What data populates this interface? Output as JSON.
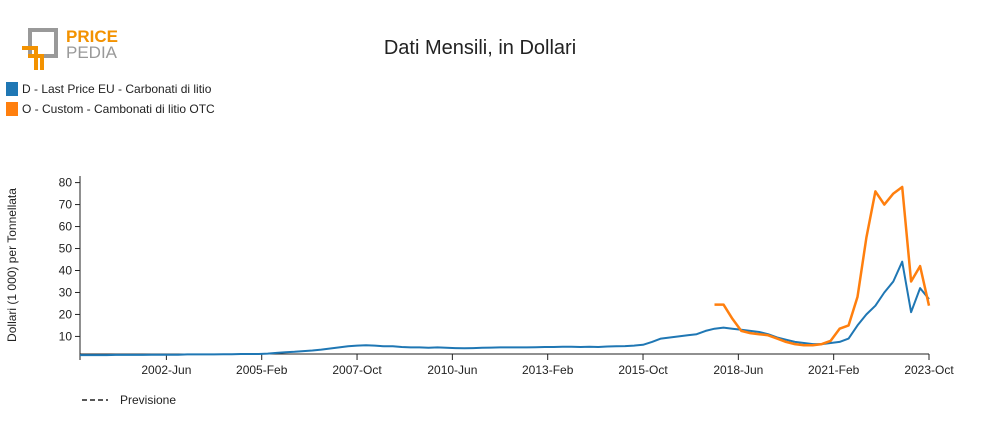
{
  "logo": {
    "line1": "PRICE",
    "line2": "PEDIA"
  },
  "chart_data": {
    "type": "line",
    "title": "Dati Mensili, in Dollari",
    "y_label": "Dollari (1 000) per Tonnellata",
    "forecast_label": "Previsione",
    "x": [
      "2000-01",
      "2000-04",
      "2000-07",
      "2000-10",
      "2001-01",
      "2001-04",
      "2001-07",
      "2001-10",
      "2002-01",
      "2002-04",
      "2002-07",
      "2002-10",
      "2003-01",
      "2003-04",
      "2003-07",
      "2003-10",
      "2004-01",
      "2004-04",
      "2004-07",
      "2004-10",
      "2005-01",
      "2005-04",
      "2005-07",
      "2005-10",
      "2006-01",
      "2006-04",
      "2006-07",
      "2006-10",
      "2007-01",
      "2007-04",
      "2007-07",
      "2007-10",
      "2008-01",
      "2008-04",
      "2008-07",
      "2008-10",
      "2009-01",
      "2009-04",
      "2009-07",
      "2009-10",
      "2010-01",
      "2010-04",
      "2010-07",
      "2010-10",
      "2011-01",
      "2011-04",
      "2011-07",
      "2011-10",
      "2012-01",
      "2012-04",
      "2012-07",
      "2012-10",
      "2013-01",
      "2013-04",
      "2013-07",
      "2013-10",
      "2014-01",
      "2014-04",
      "2014-07",
      "2014-10",
      "2015-01",
      "2015-04",
      "2015-07",
      "2015-10",
      "2016-01",
      "2016-04",
      "2016-07",
      "2016-10",
      "2017-01",
      "2017-04",
      "2017-07",
      "2017-10",
      "2018-01",
      "2018-04",
      "2018-07",
      "2018-10",
      "2019-01",
      "2019-04",
      "2019-07",
      "2019-10",
      "2020-01",
      "2020-04",
      "2020-07",
      "2020-10",
      "2021-01",
      "2021-04",
      "2021-07",
      "2021-10",
      "2022-01",
      "2022-04",
      "2022-07",
      "2022-10",
      "2023-01",
      "2023-04",
      "2023-07",
      "2023-10"
    ],
    "series": [
      {
        "name": "D - Last Price EU - Carbonati di litio",
        "color": "#1f77b4",
        "values": [
          1.5,
          1.5,
          1.5,
          1.5,
          1.6,
          1.6,
          1.6,
          1.6,
          1.7,
          1.7,
          1.7,
          1.7,
          1.8,
          1.8,
          1.8,
          1.8,
          1.9,
          1.9,
          2,
          2,
          2,
          2.2,
          2.5,
          2.8,
          3,
          3.3,
          3.6,
          4,
          4.5,
          5,
          5.5,
          5.8,
          6,
          5.8,
          5.5,
          5.5,
          5.2,
          5,
          5,
          4.8,
          5,
          4.8,
          4.7,
          4.6,
          4.7,
          4.8,
          4.9,
          5,
          5,
          5,
          5,
          5.1,
          5.2,
          5.2,
          5.3,
          5.3,
          5.2,
          5.3,
          5.2,
          5.4,
          5.5,
          5.6,
          5.8,
          6.2,
          7.5,
          9,
          9.5,
          10,
          10.5,
          11,
          12.5,
          13.5,
          14,
          13.5,
          13,
          12.5,
          12,
          11,
          9.5,
          8.5,
          7.5,
          7,
          6.5,
          6.5,
          7,
          7.5,
          9,
          15,
          20,
          24,
          30,
          35,
          44,
          21,
          32,
          27
        ]
      },
      {
        "name": "O - Custom - Cambonati di litio OTC",
        "color": "#ff7f0e",
        "values": [
          null,
          null,
          null,
          null,
          null,
          null,
          null,
          null,
          null,
          null,
          null,
          null,
          null,
          null,
          null,
          null,
          null,
          null,
          null,
          null,
          null,
          null,
          null,
          null,
          null,
          null,
          null,
          null,
          null,
          null,
          null,
          null,
          null,
          null,
          null,
          null,
          null,
          null,
          null,
          null,
          null,
          null,
          null,
          null,
          null,
          null,
          null,
          null,
          null,
          null,
          null,
          null,
          null,
          null,
          null,
          null,
          null,
          null,
          null,
          null,
          null,
          null,
          null,
          null,
          null,
          null,
          null,
          null,
          null,
          null,
          null,
          24.5,
          24.5,
          18,
          12.5,
          11.5,
          11,
          10.5,
          9,
          7.5,
          6.5,
          6,
          6,
          6.5,
          8,
          13.5,
          15,
          28,
          55,
          76,
          70,
          75,
          78,
          35,
          42,
          24
        ]
      }
    ],
    "xlim": [
      "2000-01",
      "2023-10"
    ],
    "xticks": [
      {
        "value": "2002-06",
        "label": "2002-Jun"
      },
      {
        "value": "2005-02",
        "label": "2005-Feb"
      },
      {
        "value": "2007-10",
        "label": "2007-Oct"
      },
      {
        "value": "2010-06",
        "label": "2010-Jun"
      },
      {
        "value": "2013-02",
        "label": "2013-Feb"
      },
      {
        "value": "2015-10",
        "label": "2015-Oct"
      },
      {
        "value": "2018-06",
        "label": "2018-Jun"
      },
      {
        "value": "2021-02",
        "label": "2021-Feb"
      },
      {
        "value": "2023-10",
        "label": "2023-Oct"
      }
    ],
    "ylim": [
      2,
      83
    ],
    "yticks": [
      10,
      20,
      30,
      40,
      50,
      60,
      70,
      80
    ]
  }
}
